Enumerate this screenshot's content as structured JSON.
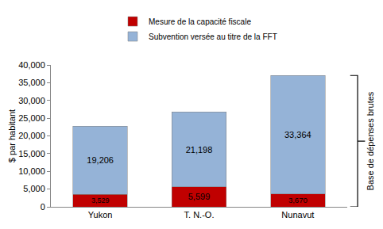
{
  "chart_data": {
    "type": "bar",
    "stacked": true,
    "categories": [
      "Yukon",
      "T. N.-O.",
      "Nunavut"
    ],
    "series": [
      {
        "name": "Mesure de la capacité fiscale",
        "color": "#c00000",
        "values": [
          3529,
          5599,
          3670
        ],
        "value_labels": [
          "3,529",
          "5,599",
          "3,670"
        ]
      },
      {
        "name": "Subvention versée au titre de la FFT",
        "color": "#95b3d7",
        "values": [
          19206,
          21198,
          33364
        ],
        "value_labels": [
          "19,206",
          "21,198",
          "33,364"
        ]
      }
    ],
    "y_label": "$ par habitant",
    "ylim": [
      0,
      40000
    ],
    "yticks": [
      0,
      {
        "value": 5000,
        "label": "5,000"
      },
      {
        "value": 10000,
        "label": "10,000"
      },
      {
        "value": 15000,
        "label": "15,000"
      },
      {
        "value": 20000,
        "label": "20,000"
      },
      {
        "value": 25000,
        "label": "25,000"
      },
      {
        "value": 30000,
        "label": "30,000"
      },
      {
        "value": 35000,
        "label": "35,000"
      },
      {
        "value": 40000,
        "label": "40,000"
      }
    ],
    "annotations": [
      {
        "text": "Base de dépenses brutes"
      }
    ],
    "data_labels": true,
    "grid": false,
    "legend": "top"
  }
}
